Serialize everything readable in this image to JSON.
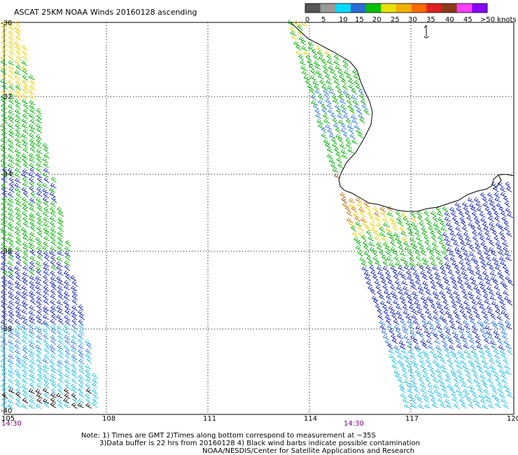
{
  "title": "ASCAT 25KM NOAA Winds 20160128 ascending",
  "legend": {
    "labels": [
      "0",
      "5",
      "10",
      "15",
      "20",
      "25",
      "30",
      "35",
      "40",
      "45",
      ">50 knots"
    ],
    "colors": [
      "#555555",
      "#999999",
      "#00d8ff",
      "#2b6bd8",
      "#00c000",
      "#e8e000",
      "#f0b000",
      "#ff6a00",
      "#e02020",
      "#8b3a1a",
      "#ff40ff",
      "#8a00ff"
    ]
  },
  "axes": {
    "x_ticks": [
      "105",
      "108",
      "111",
      "114",
      "117",
      "120"
    ],
    "y_ticks": [
      "-30",
      "-32",
      "-34",
      "-36",
      "-38",
      "-40"
    ]
  },
  "times": [
    "14:30",
    "14:30"
  ],
  "notes": [
    "Note: 1) Times are GMT 2)Times along bottom correspond to measurement at ~35S",
    "3)Data buffer is 22 hrs from 20160128 4) Black wind barbs indicate possible contamination",
    "NOAA/NESDIS/Center for Satellite Applications and Research"
  ],
  "band_colors": {
    "yellow": "#e8d000",
    "green": "#00b000",
    "blue": "#1020b0",
    "lightblue": "#2a7ad8",
    "cyan": "#22c0e0",
    "orange": "#d07000",
    "brown": "#a05020",
    "black": "#000000"
  }
}
